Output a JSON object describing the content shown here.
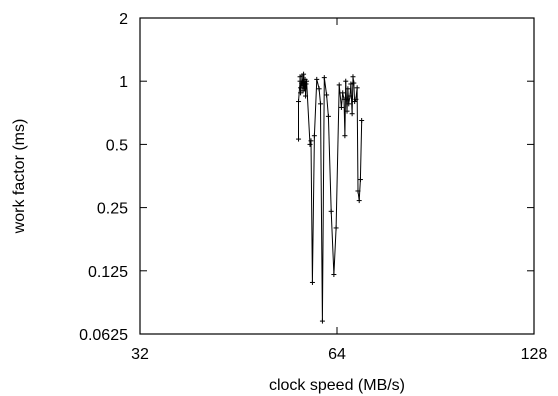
{
  "chart_data": {
    "type": "line",
    "title": "",
    "xlabel": "clock speed (MB/s)",
    "ylabel": "work factor (ms)",
    "x_scale": "log2",
    "y_scale": "log2",
    "xlim": [
      32,
      128
    ],
    "ylim": [
      0.0625,
      2
    ],
    "x_ticks": [
      {
        "value": 32,
        "label": "32"
      },
      {
        "value": 64,
        "label": "64"
      },
      {
        "value": 128,
        "label": "128"
      }
    ],
    "y_ticks": [
      {
        "value": 2,
        "label": "2"
      },
      {
        "value": 1,
        "label": "1"
      },
      {
        "value": 0.5,
        "label": "0.5"
      },
      {
        "value": 0.25,
        "label": "0.25"
      },
      {
        "value": 0.125,
        "label": "0.125"
      },
      {
        "value": 0.0625,
        "label": "0.0625"
      }
    ],
    "grid": false,
    "legend": "none",
    "series": [
      {
        "color": "#000000",
        "marker": "plus",
        "x": [
          55.9,
          55.9,
          56.2,
          56.2,
          56.3,
          56.3,
          56.5,
          56.6,
          56.7,
          56.8,
          56.9,
          57.0,
          57.1,
          57.2,
          57.3,
          57.4,
          57.5,
          58.2,
          58.4,
          58.7,
          59.1,
          59.6,
          60.1,
          60.4,
          60.8,
          61.2,
          61.7,
          62.1,
          62.7,
          63.3,
          63.8,
          64.5,
          65.0,
          65.3,
          65.6,
          65.8,
          66.0,
          66.3,
          66.5,
          66.7,
          67.0,
          67.2,
          67.5,
          67.7,
          67.9,
          68.1,
          68.4,
          68.7,
          68.9,
          69.2,
          69.5,
          69.8
        ],
        "y": [
          0.53,
          0.8,
          1.0,
          1.05,
          0.93,
          0.88,
          0.98,
          1.06,
          0.98,
          0.9,
          1.08,
          0.95,
          0.92,
          1.02,
          0.85,
          0.97,
          1.0,
          0.5,
          0.52,
          0.11,
          0.55,
          1.02,
          0.92,
          0.78,
          0.072,
          1.04,
          0.86,
          0.68,
          0.24,
          0.12,
          0.2,
          0.96,
          0.75,
          0.88,
          0.82,
          0.55,
          1.0,
          0.72,
          0.92,
          0.78,
          0.85,
          0.97,
          0.7,
          1.05,
          0.98,
          0.8,
          0.82,
          0.93,
          0.3,
          0.27,
          0.34,
          0.65
        ]
      }
    ]
  }
}
